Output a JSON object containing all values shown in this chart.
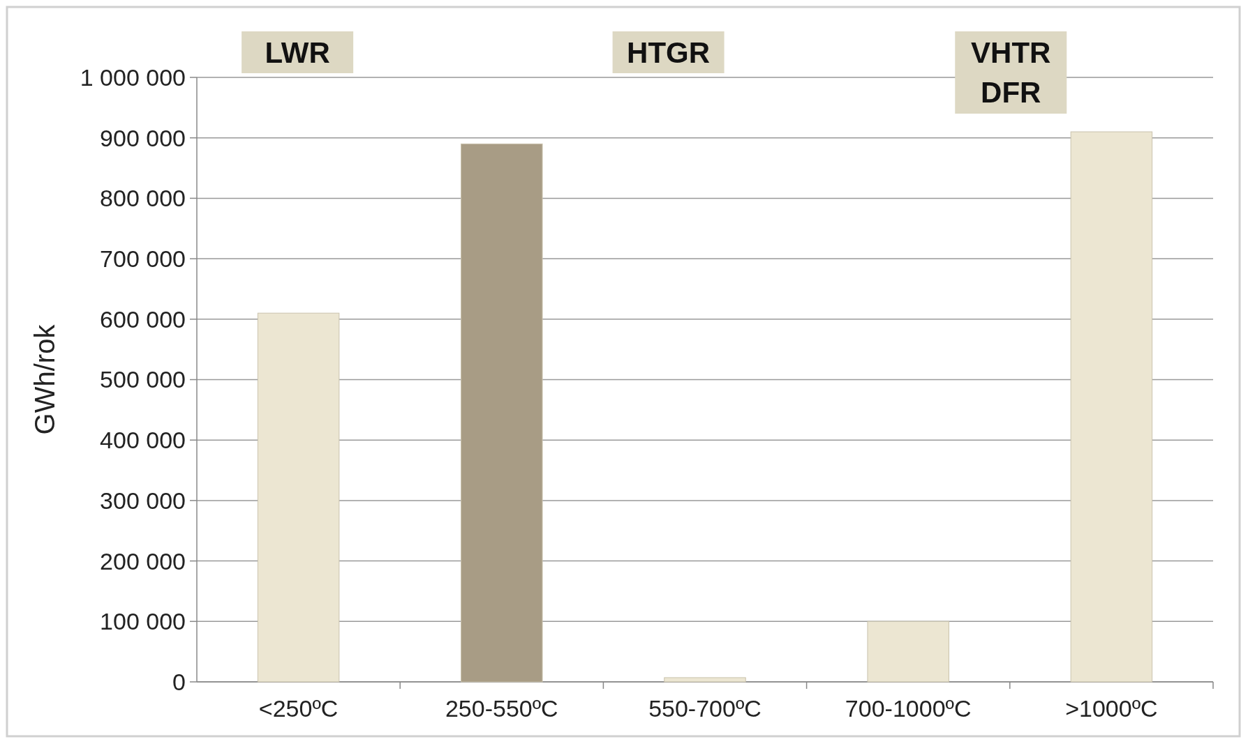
{
  "chart_data": {
    "type": "bar",
    "ylabel": "GWh/rok",
    "categories": [
      "<250ºC",
      "250-550ºC",
      "550-700ºC",
      "700-1000ºC",
      ">1000ºC"
    ],
    "values": [
      610000,
      890000,
      7000,
      100000,
      910000
    ],
    "colors": [
      "#ece6d2",
      "#a89c85",
      "#ece6d2",
      "#ece6d2",
      "#ece6d2"
    ],
    "ylim": [
      0,
      1000000
    ],
    "yticks": [
      {
        "value": 0,
        "label": "0"
      },
      {
        "value": 100000,
        "label": "100 000"
      },
      {
        "value": 200000,
        "label": "200 000"
      },
      {
        "value": 300000,
        "label": "300 000"
      },
      {
        "value": 400000,
        "label": "400 000"
      },
      {
        "value": 500000,
        "label": "500 000"
      },
      {
        "value": 600000,
        "label": "600 000"
      },
      {
        "value": 700000,
        "label": "700 000"
      },
      {
        "value": 800000,
        "label": "800 000"
      },
      {
        "value": 900000,
        "label": "900 000"
      },
      {
        "value": 1000000,
        "label": "1 000 000"
      }
    ],
    "grid": "y",
    "annotations": [
      "LWR",
      "HTGR",
      "VHTR\nDFR"
    ]
  }
}
